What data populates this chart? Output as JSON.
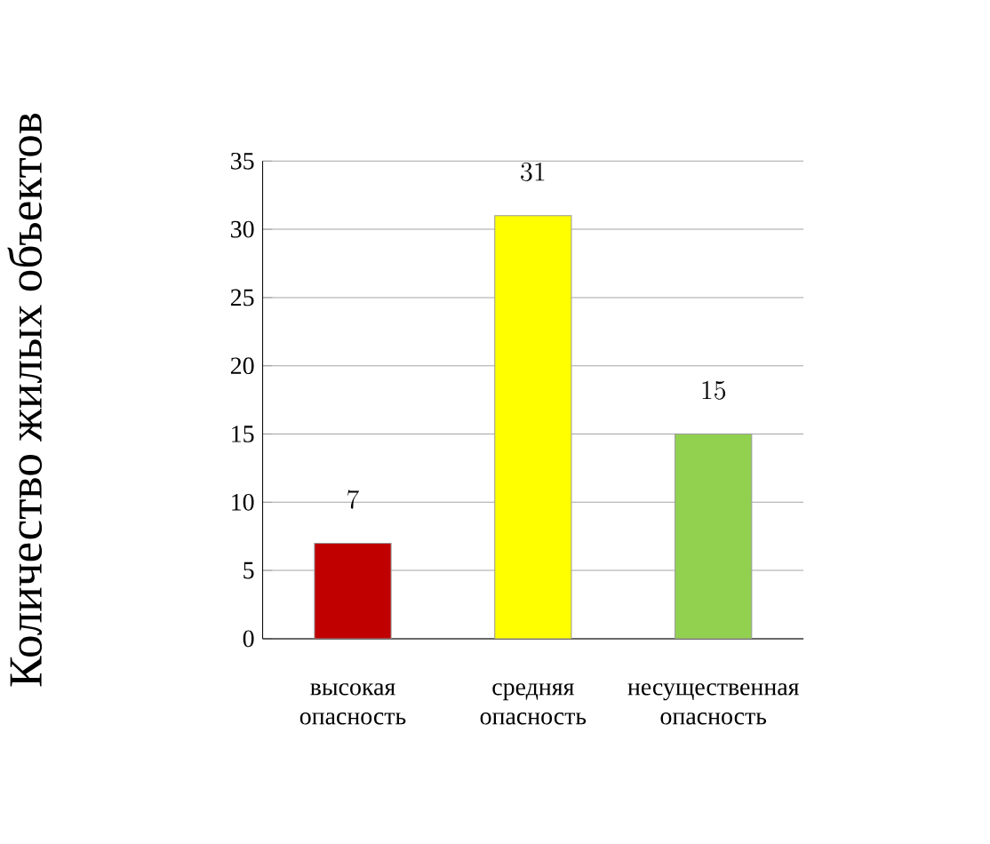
{
  "chart_data": {
    "type": "bar",
    "ylabel": "Количество жилых объектов",
    "categories": [
      "высокая опасность",
      "средняя опасность",
      "несущественная опасность"
    ],
    "values": [
      7,
      31,
      15
    ],
    "colors": [
      "#c00000",
      "#ffff00",
      "#92d050"
    ],
    "ylim": [
      0,
      35
    ],
    "yticks": [
      0,
      5,
      10,
      15,
      20,
      25,
      30,
      35
    ],
    "grid": "y",
    "data_labels": true
  }
}
